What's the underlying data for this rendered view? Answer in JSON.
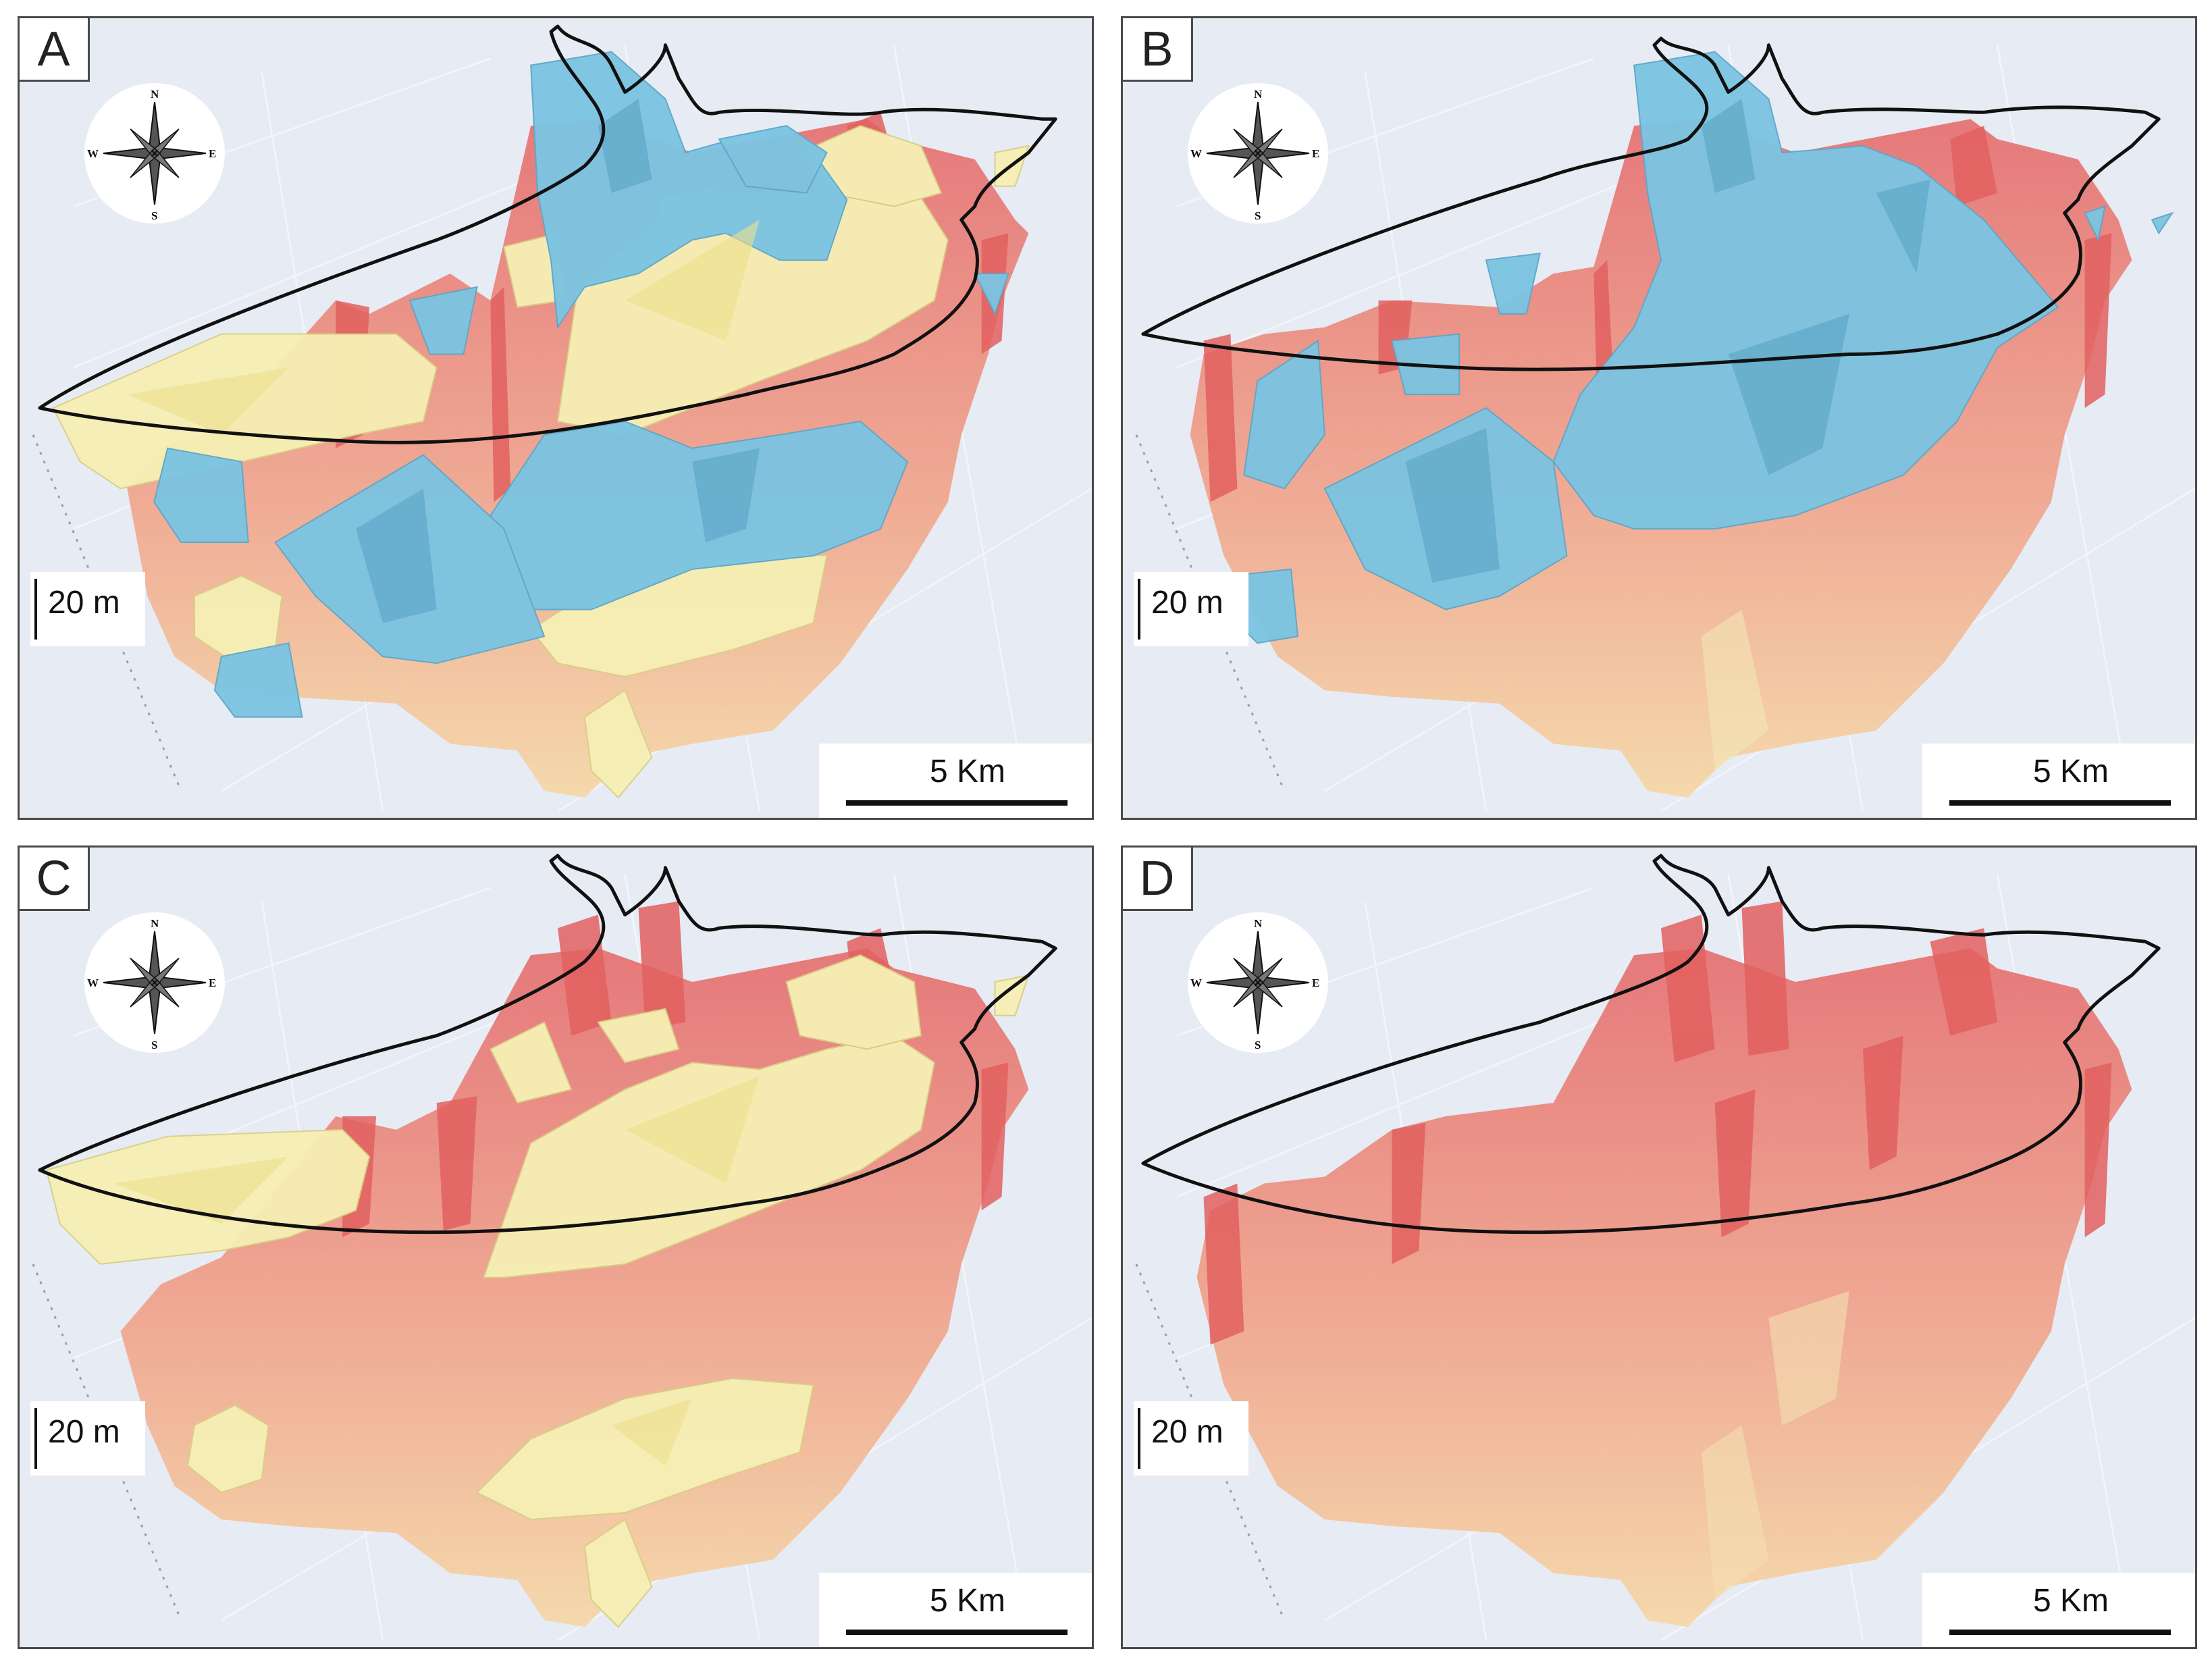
{
  "panels": [
    {
      "id": "A",
      "label": "A",
      "vertical_scale": "20 m",
      "horizontal_scale": "5 Km",
      "layers": [
        "pink-terrain",
        "yellow-bodies",
        "blue-bodies"
      ]
    },
    {
      "id": "B",
      "label": "B",
      "vertical_scale": "20 m",
      "horizontal_scale": "5 Km",
      "layers": [
        "pink-terrain",
        "blue-bodies"
      ]
    },
    {
      "id": "C",
      "label": "C",
      "vertical_scale": "20 m",
      "horizontal_scale": "5 Km",
      "layers": [
        "pink-terrain",
        "yellow-bodies"
      ]
    },
    {
      "id": "D",
      "label": "D",
      "vertical_scale": "20 m",
      "horizontal_scale": "5 Km",
      "layers": [
        "pink-terrain"
      ]
    }
  ],
  "compass": {
    "n": "N",
    "s": "S",
    "e": "E",
    "w": "W"
  },
  "colors": {
    "background": "#e6ebf4",
    "terrain_top": "#e87a78",
    "terrain_bottom": "#f3cf9a",
    "yellow_body": "#f6efb4",
    "blue_body": "#7cc4e2",
    "outline": "#111111"
  }
}
